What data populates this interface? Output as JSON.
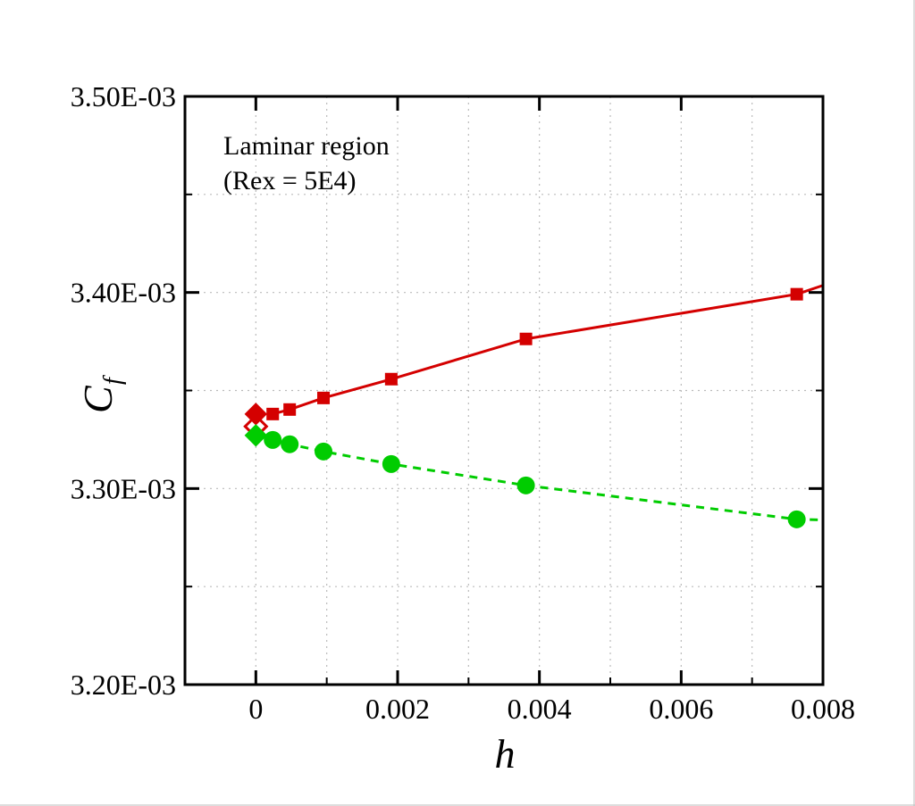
{
  "chart_data": {
    "type": "line",
    "title": "",
    "xlabel": "h",
    "ylabel": "C",
    "ylabel_sub": "f",
    "xlim": [
      -0.001,
      0.008
    ],
    "ylim": [
      0.0032,
      0.0035
    ],
    "x_ticks": [
      "0",
      "0.002",
      "0.004",
      "0.006",
      "0.008"
    ],
    "x_tick_values": [
      0,
      0.002,
      0.004,
      0.006,
      0.008
    ],
    "y_ticks": [
      "3.20E-03",
      "3.30E-03",
      "3.40E-03",
      "3.50E-03"
    ],
    "y_tick_values": [
      0.0032,
      0.0033,
      0.0034,
      0.0035
    ],
    "grid": true,
    "annotation": [
      "Laminar region",
      "(Rex = 5E4)"
    ],
    "series": [
      {
        "color": "#d40000",
        "marker": "square",
        "line": "solid",
        "x": [
          0.000238,
          0.000477,
          0.000954,
          0.00191,
          0.00381,
          0.00763
        ],
        "y": [
          0.003338,
          0.0033403,
          0.0033462,
          0.0033558,
          0.0033763,
          0.0033991
        ],
        "line_extends_to": [
          0.008,
          0.0034036
        ]
      },
      {
        "color": "#00cc00",
        "marker": "circle",
        "line": "dashed",
        "x": [
          0.000238,
          0.000477,
          0.000954,
          0.00191,
          0.00381,
          0.00763
        ],
        "y": [
          0.0033248,
          0.0033226,
          0.0033189,
          0.0033125,
          0.0033016,
          0.0032843
        ],
        "line_extends_to": [
          0.008,
          0.003284
        ]
      }
    ],
    "extrapolated_points": [
      {
        "color": "#d40000",
        "marker": "diamond-filled",
        "x": 0,
        "y": 0.003338
      },
      {
        "color": "#d40000",
        "marker": "diamond-open",
        "x": 0,
        "y": 0.0033317
      },
      {
        "color": "#00cc00",
        "marker": "diamond-filled",
        "x": 0,
        "y": 0.0033271
      }
    ]
  }
}
